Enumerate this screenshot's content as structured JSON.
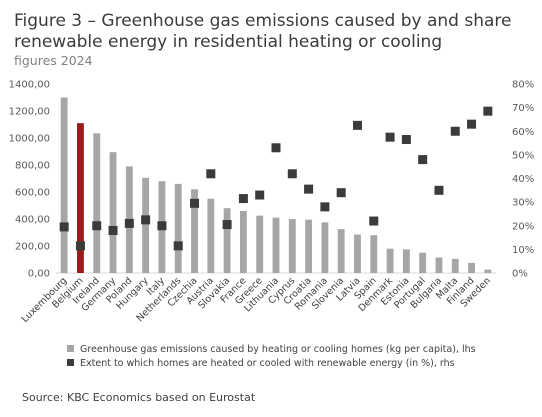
{
  "header": {
    "title": "Figure 3 – Greenhouse gas emissions caused by and share renewable energy in residential heating or cooling",
    "subtitle": "figures 2024"
  },
  "footer": {
    "source": "Source: KBC Economics based on Eurostat"
  },
  "colors": {
    "bar": "#a6a6a6",
    "highlight": "#9b1b1b",
    "marker": "#3b3b3b"
  },
  "chart_data": {
    "type": "bar",
    "categories": [
      "Luxembourg",
      "Belgium",
      "Ireland",
      "Germany",
      "Poland",
      "Hungary",
      "Italy",
      "Netherlands",
      "Czechia",
      "Austria",
      "Slovakia",
      "France",
      "Greece",
      "Lithuania",
      "Cyprus",
      "Croatia",
      "Romania",
      "Slovenia",
      "Latvia",
      "Spain",
      "Denmark",
      "Estonia",
      "Portugal",
      "Bulgaria",
      "Malta",
      "Finland",
      "Sweden"
    ],
    "highlight_category": "Belgium",
    "series": [
      {
        "name": "Greenhouse gas emissions caused by heating or cooling homes (kg per capita), lhs",
        "type": "bar",
        "axis": "left",
        "values": [
          1300,
          1110,
          1035,
          895,
          790,
          705,
          680,
          660,
          620,
          550,
          480,
          460,
          425,
          410,
          400,
          395,
          375,
          325,
          285,
          280,
          180,
          175,
          150,
          115,
          105,
          75,
          25
        ]
      },
      {
        "name": "Extent to which homes are heated or cooled with renewable energy (in %), rhs",
        "type": "scatter",
        "axis": "right",
        "values": [
          19.5,
          11.5,
          20.0,
          18.0,
          21.0,
          22.5,
          20.0,
          11.5,
          29.5,
          42.0,
          20.5,
          31.5,
          33.0,
          53.0,
          42.0,
          35.5,
          28.0,
          34.0,
          62.5,
          22.0,
          57.5,
          56.5,
          48.0,
          35.0,
          60.0,
          63.0,
          68.5
        ]
      }
    ],
    "y_left": {
      "ylim": [
        0,
        1400
      ],
      "ticks": [
        "0,00",
        "200,00",
        "400,00",
        "600,00",
        "800,00",
        "1000,00",
        "1200,00",
        "1400,00"
      ]
    },
    "y_right": {
      "ylim": [
        0,
        80
      ],
      "ticks": [
        "0%",
        "10%",
        "20%",
        "30%",
        "40%",
        "50%",
        "60%",
        "70%",
        "80%"
      ]
    },
    "grid": false,
    "legend_position": "bottom"
  }
}
